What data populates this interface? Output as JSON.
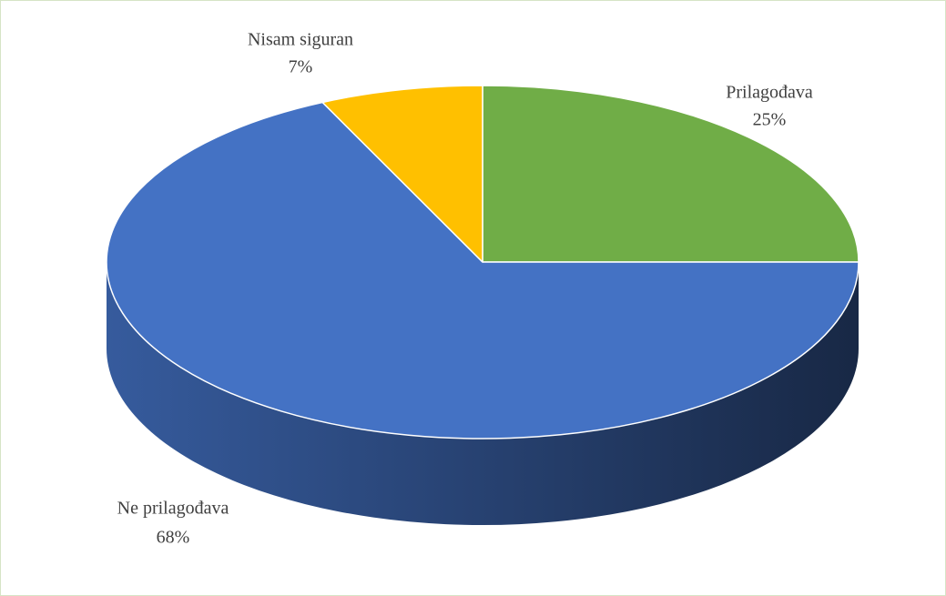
{
  "chart_data": {
    "type": "pie3d",
    "categories": [
      "Prilagođava",
      "Ne prilagođava",
      "Nisam siguran"
    ],
    "values": [
      25,
      68,
      7
    ],
    "value_labels": [
      "25%",
      "68%",
      "7%"
    ],
    "colors": [
      "#70ad47",
      "#4472c4",
      "#ffc000"
    ]
  }
}
